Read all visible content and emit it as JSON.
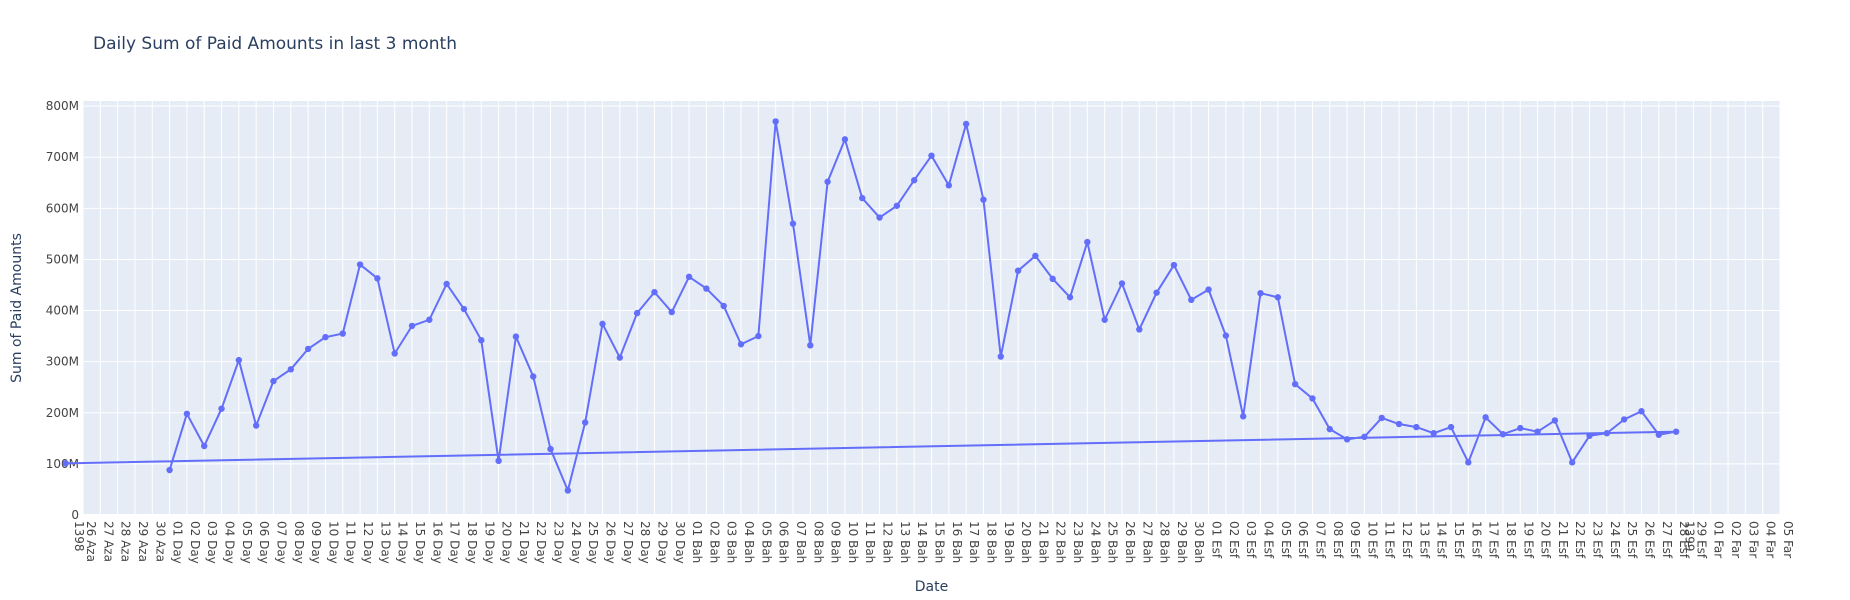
{
  "chart_data": {
    "type": "line",
    "title": "Daily Sum of Paid Amounts in last 3 month",
    "xlabel": "Date",
    "ylabel": "Sum of Paid Amounts",
    "ylim": [
      0,
      810
    ],
    "y_unit_suffix": "M",
    "y_ticks": [
      "0",
      "100M",
      "200M",
      "300M",
      "400M",
      "500M",
      "600M",
      "700M",
      "800M"
    ],
    "grid": true,
    "colors": {
      "line": "#636efa",
      "plot_bg": "#e5ecf6",
      "grid": "#ffffff",
      "text": "#2a3f5f",
      "axis_text": "#444444"
    },
    "x_tick_labels": [
      "26 Aza\n1398",
      "27 Aza",
      "28 Aza",
      "29 Aza",
      "30 Aza",
      "01 Day",
      "02 Day",
      "03 Day",
      "04 Day",
      "05 Day",
      "06 Day",
      "07 Day",
      "08 Day",
      "09 Day",
      "10 Day",
      "11 Day",
      "12 Day",
      "13 Day",
      "14 Day",
      "15 Day",
      "16 Day",
      "17 Day",
      "18 Day",
      "19 Day",
      "20 Day",
      "21 Day",
      "22 Day",
      "23 Day",
      "24 Day",
      "25 Day",
      "26 Day",
      "27 Day",
      "28 Day",
      "29 Day",
      "30 Day",
      "01 Bah",
      "02 Bah",
      "03 Bah",
      "04 Bah",
      "05 Bah",
      "06 Bah",
      "07 Bah",
      "08 Bah",
      "09 Bah",
      "10 Bah",
      "11 Bah",
      "12 Bah",
      "13 Bah",
      "14 Bah",
      "15 Bah",
      "16 Bah",
      "17 Bah",
      "18 Bah",
      "19 Bah",
      "20 Bah",
      "21 Bah",
      "22 Bah",
      "23 Bah",
      "24 Bah",
      "25 Bah",
      "26 Bah",
      "27 Bah",
      "28 Bah",
      "29 Bah",
      "30 Bah",
      "01 Esf",
      "02 Esf",
      "03 Esf",
      "04 Esf",
      "05 Esf",
      "06 Esf",
      "07 Esf",
      "08 Esf",
      "09 Esf",
      "10 Esf",
      "11 Esf",
      "12 Esf",
      "13 Esf",
      "14 Esf",
      "15 Esf",
      "16 Esf",
      "17 Esf",
      "18 Esf",
      "19 Esf",
      "20 Esf",
      "21 Esf",
      "22 Esf",
      "23 Esf",
      "24 Esf",
      "25 Esf",
      "26 Esf",
      "27 Esf",
      "28 Esf",
      "29 Esf\n1399",
      "01 Far",
      "02 Far",
      "03 Far",
      "04 Far",
      "05 Far"
    ],
    "x_points": [
      "01 Day",
      "02 Day",
      "03 Day",
      "04 Day",
      "05 Day",
      "06 Day",
      "07 Day",
      "08 Day",
      "09 Day",
      "10 Day",
      "11 Day",
      "12 Day",
      "13 Day",
      "14 Day",
      "15 Day",
      "16 Day",
      "17 Day",
      "18 Day",
      "19 Day",
      "20 Day",
      "21 Day",
      "22 Day",
      "23 Day",
      "24 Day",
      "25 Day",
      "26 Day",
      "27 Day",
      "28 Day",
      "29 Day",
      "30 Day",
      "01 Bah",
      "02 Bah",
      "03 Bah",
      "04 Bah",
      "05 Bah",
      "06 Bah",
      "07 Bah",
      "08 Bah",
      "09 Bah",
      "10 Bah",
      "11 Bah",
      "12 Bah",
      "13 Bah",
      "14 Bah",
      "15 Bah",
      "16 Bah",
      "17 Bah",
      "18 Bah",
      "19 Bah",
      "20 Bah",
      "21 Bah",
      "22 Bah",
      "23 Bah",
      "24 Bah",
      "25 Bah",
      "26 Bah",
      "27 Bah",
      "28 Bah",
      "29 Bah",
      "30 Bah",
      "01 Esf",
      "02 Esf",
      "03 Esf",
      "04 Esf",
      "05 Esf",
      "06 Esf",
      "07 Esf",
      "08 Esf",
      "09 Esf",
      "10 Esf",
      "11 Esf",
      "12 Esf",
      "13 Esf",
      "14 Esf",
      "15 Esf",
      "16 Esf",
      "17 Esf",
      "18 Esf",
      "19 Esf",
      "20 Esf",
      "21 Esf",
      "22 Esf",
      "23 Esf",
      "24 Esf",
      "25 Esf",
      "26 Esf",
      "27 Esf",
      "28 Esf",
      "29 Esf"
    ],
    "values": [
      88,
      198,
      135,
      208,
      303,
      175,
      262,
      285,
      325,
      348,
      355,
      490,
      463,
      316,
      370,
      382,
      452,
      403,
      342,
      106,
      349,
      271,
      129,
      48,
      181,
      374,
      308,
      395,
      436,
      397,
      466,
      443,
      409,
      334,
      350,
      770,
      570,
      332,
      652,
      735,
      620,
      582,
      605,
      655,
      703,
      645,
      765,
      617,
      310,
      478,
      507,
      462,
      426,
      534,
      382,
      453,
      363,
      435,
      489,
      421,
      441,
      351,
      193,
      434,
      426,
      256,
      228,
      168,
      148,
      153,
      190,
      178,
      172,
      160,
      172,
      103,
      191,
      158,
      170,
      163,
      185,
      103,
      155,
      160,
      187,
      203,
      157,
      163,
      101
    ]
  }
}
